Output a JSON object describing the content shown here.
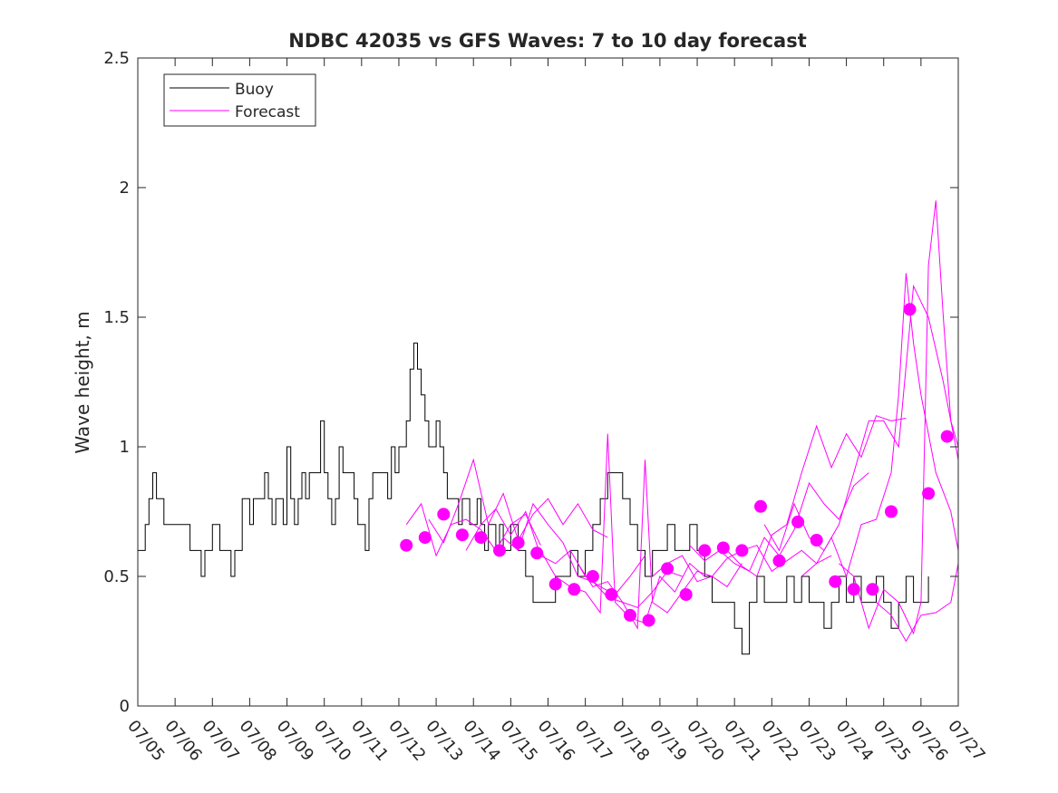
{
  "chart_data": {
    "type": "line",
    "title": "NDBC 42035 vs GFS Waves: 7 to 10 day forecast",
    "xlabel": "",
    "ylabel": "Wave height, m",
    "x_tick_labels": [
      "07/05",
      "07/06",
      "07/07",
      "07/08",
      "07/09",
      "07/10",
      "07/11",
      "07/12",
      "07/13",
      "07/14",
      "07/15",
      "07/16",
      "07/17",
      "07/18",
      "07/19",
      "07/20",
      "07/21",
      "07/22",
      "07/23",
      "07/24",
      "07/25",
      "07/26",
      "07/27"
    ],
    "y_tick_labels": [
      "0",
      "0.5",
      "1",
      "1.5",
      "2",
      "2.5"
    ],
    "xlim_days": [
      0,
      22
    ],
    "ylim": [
      0,
      2.5
    ],
    "x_unit": "days since 07/05",
    "grid": false,
    "legend_position": "top-left",
    "legend": [
      "Buoy",
      "Forecast"
    ],
    "colors": {
      "buoy": "#000000",
      "forecast": "#ff00ff"
    },
    "series": [
      {
        "name": "Buoy",
        "color": "#000000",
        "x": [
          0,
          0.2,
          0.3,
          0.4,
          0.5,
          0.6,
          0.7,
          0.8,
          1.0,
          1.2,
          1.4,
          1.6,
          1.7,
          1.8,
          1.9,
          2.0,
          2.1,
          2.2,
          2.3,
          2.4,
          2.5,
          2.6,
          2.8,
          2.9,
          3.0,
          3.1,
          3.2,
          3.4,
          3.5,
          3.6,
          3.7,
          3.8,
          3.9,
          4.0,
          4.1,
          4.2,
          4.3,
          4.4,
          4.5,
          4.6,
          4.8,
          4.9,
          5.0,
          5.1,
          5.2,
          5.3,
          5.4,
          5.5,
          5.6,
          5.7,
          5.8,
          5.9,
          6.0,
          6.1,
          6.2,
          6.3,
          6.4,
          6.5,
          6.6,
          6.7,
          6.8,
          6.9,
          7.0,
          7.1,
          7.2,
          7.3,
          7.4,
          7.5,
          7.6,
          7.7,
          7.8,
          7.9,
          8.0,
          8.1,
          8.2,
          8.3,
          8.4,
          8.5,
          8.6,
          8.7,
          8.8,
          8.9,
          9.0,
          9.1,
          9.2,
          9.3,
          9.4,
          9.5,
          9.6,
          9.7,
          9.8,
          9.9,
          10.0,
          10.2,
          10.4,
          10.6,
          10.8,
          11.0,
          11.2,
          11.4,
          11.6,
          11.8,
          12.0,
          12.2,
          12.4,
          12.6,
          12.8,
          13.0,
          13.2,
          13.4,
          13.6,
          13.8,
          14.0,
          14.2,
          14.4,
          14.6,
          14.8,
          15.0,
          15.2,
          15.4,
          15.6,
          15.8,
          16.0,
          16.2,
          16.4,
          16.6,
          16.8,
          17.0,
          17.2,
          17.4,
          17.6,
          17.8,
          18.0,
          18.2,
          18.4,
          18.6,
          18.8,
          19.0,
          19.2,
          19.4,
          19.6,
          19.8,
          20.0,
          20.2,
          20.4,
          20.6,
          20.8,
          21.0,
          21.2
        ],
        "y": [
          0.6,
          0.7,
          0.8,
          0.9,
          0.8,
          0.8,
          0.7,
          0.7,
          0.7,
          0.7,
          0.6,
          0.6,
          0.5,
          0.6,
          0.6,
          0.7,
          0.7,
          0.6,
          0.6,
          0.6,
          0.5,
          0.6,
          0.8,
          0.8,
          0.7,
          0.8,
          0.8,
          0.9,
          0.8,
          0.7,
          0.8,
          0.8,
          0.7,
          1.0,
          0.8,
          0.7,
          0.8,
          0.9,
          0.8,
          0.9,
          0.9,
          1.1,
          0.9,
          0.8,
          0.7,
          0.8,
          1.0,
          0.9,
          0.9,
          0.9,
          0.8,
          0.7,
          0.7,
          0.6,
          0.8,
          0.9,
          0.9,
          0.9,
          0.9,
          0.8,
          1.0,
          0.9,
          1.0,
          1.0,
          1.1,
          1.3,
          1.4,
          1.3,
          1.2,
          1.1,
          1.0,
          1.0,
          1.1,
          1.0,
          0.9,
          0.8,
          0.8,
          0.8,
          0.7,
          0.8,
          0.8,
          0.7,
          0.7,
          0.8,
          0.7,
          0.6,
          0.7,
          0.7,
          0.6,
          0.7,
          0.6,
          0.6,
          0.7,
          0.6,
          0.5,
          0.4,
          0.4,
          0.4,
          0.5,
          0.5,
          0.6,
          0.5,
          0.6,
          0.7,
          0.8,
          0.9,
          0.9,
          0.8,
          0.7,
          0.6,
          0.5,
          0.6,
          0.6,
          0.7,
          0.6,
          0.6,
          0.7,
          0.6,
          0.5,
          0.4,
          0.4,
          0.4,
          0.3,
          0.2,
          0.4,
          0.5,
          0.4,
          0.4,
          0.4,
          0.5,
          0.4,
          0.5,
          0.4,
          0.4,
          0.3,
          0.4,
          0.5,
          0.4,
          0.5,
          0.4,
          0.4,
          0.5,
          0.4,
          0.3,
          0.4,
          0.5,
          0.4,
          0.4,
          0.5
        ]
      },
      {
        "name": "Forecast",
        "color": "#ff00ff",
        "lines": [
          {
            "x": [
              7.2,
              7.6,
              8.0,
              8.4,
              8.8,
              9.2,
              9.6,
              10.0,
              10.4,
              10.8
            ],
            "y": [
              0.7,
              0.78,
              0.58,
              0.7,
              0.72,
              0.68,
              0.6,
              0.7,
              0.74,
              0.62
            ]
          },
          {
            "x": [
              7.8,
              8.2,
              8.6,
              9.0,
              9.4,
              9.8,
              10.2,
              10.6,
              11.0,
              11.4,
              11.8,
              12.2,
              12.6
            ],
            "y": [
              0.72,
              0.63,
              0.78,
              0.95,
              0.7,
              0.82,
              0.64,
              0.74,
              0.8,
              0.7,
              0.78,
              0.68,
              0.65
            ]
          },
          {
            "x": [
              8.8,
              9.2,
              9.6,
              10.0,
              10.4,
              10.8,
              11.2,
              11.6,
              12.0,
              12.4,
              12.8,
              13.2,
              13.6
            ],
            "y": [
              0.6,
              0.7,
              0.76,
              0.66,
              0.75,
              0.58,
              0.55,
              0.6,
              0.5,
              0.46,
              0.43,
              0.5,
              0.58
            ]
          },
          {
            "x": [
              9.8,
              10.2,
              10.6,
              11.0,
              11.4,
              11.8,
              12.2,
              12.6,
              13.0,
              13.4,
              13.8,
              14.2,
              14.6
            ],
            "y": [
              0.65,
              0.6,
              0.78,
              0.7,
              0.63,
              0.5,
              0.48,
              0.42,
              0.4,
              0.38,
              0.44,
              0.52,
              0.5
            ]
          },
          {
            "x": [
              10.8,
              11.2,
              11.6,
              12.0,
              12.4,
              12.6,
              12.8,
              13.2,
              13.6,
              14.0,
              14.4,
              14.8,
              15.2
            ],
            "y": [
              0.6,
              0.5,
              0.46,
              0.44,
              0.36,
              1.05,
              0.4,
              0.34,
              0.32,
              0.5,
              0.44,
              0.55,
              0.5
            ]
          },
          {
            "x": [
              11.8,
              12.2,
              12.6,
              13.0,
              13.4,
              13.6,
              13.8,
              14.2,
              14.6,
              15.0,
              15.4,
              15.8,
              16.2
            ],
            "y": [
              0.55,
              0.46,
              0.48,
              0.4,
              0.3,
              0.95,
              0.4,
              0.36,
              0.44,
              0.52,
              0.5,
              0.46,
              0.55
            ]
          },
          {
            "x": [
              13.8,
              14.2,
              14.6,
              15.0,
              15.4,
              15.8,
              16.2,
              16.6,
              17.0,
              17.4,
              17.8,
              18.2,
              18.6
            ],
            "y": [
              0.5,
              0.55,
              0.58,
              0.48,
              0.5,
              0.57,
              0.6,
              0.62,
              0.52,
              0.56,
              0.6,
              0.55,
              0.58
            ]
          },
          {
            "x": [
              14.8,
              15.2,
              15.6,
              16.0,
              16.4,
              16.8,
              17.2,
              17.6,
              18.0,
              18.4,
              18.8,
              19.2,
              19.6
            ],
            "y": [
              0.62,
              0.56,
              0.6,
              0.55,
              0.52,
              0.65,
              0.58,
              0.68,
              0.86,
              0.78,
              0.72,
              0.85,
              0.9
            ]
          },
          {
            "x": [
              15.8,
              16.2,
              16.6,
              17.0,
              17.4,
              17.8,
              18.2,
              18.6,
              19.0,
              19.4,
              19.8,
              20.2,
              20.6
            ],
            "y": [
              0.6,
              0.54,
              0.5,
              0.66,
              0.7,
              0.9,
              1.08,
              0.92,
              1.05,
              0.96,
              1.12,
              1.1,
              1.11
            ]
          },
          {
            "x": [
              16.8,
              17.2,
              17.6,
              18.0,
              18.4,
              18.8,
              19.2,
              19.6,
              20.0,
              20.4,
              20.8,
              21.2,
              21.6,
              22.0
            ],
            "y": [
              0.7,
              0.6,
              0.78,
              0.65,
              0.6,
              0.7,
              0.9,
              1.1,
              1.1,
              1.0,
              1.62,
              1.5,
              1.25,
              0.95
            ]
          },
          {
            "x": [
              17.8,
              18.2,
              18.6,
              19.0,
              19.4,
              19.8,
              20.2,
              20.4,
              20.6,
              20.8,
              21.0,
              21.4,
              21.8,
              22.0
            ],
            "y": [
              0.5,
              0.55,
              0.65,
              0.5,
              0.7,
              0.72,
              0.9,
              1.2,
              1.67,
              1.4,
              1.2,
              0.9,
              0.75,
              0.6
            ]
          },
          {
            "x": [
              18.8,
              19.2,
              19.6,
              20.0,
              20.4,
              20.8,
              21.0,
              21.2,
              21.4,
              21.6,
              21.8,
              22.0
            ],
            "y": [
              0.55,
              0.5,
              0.3,
              0.45,
              0.4,
              0.28,
              0.4,
              1.7,
              1.95,
              1.5,
              1.1,
              1.0
            ]
          },
          {
            "x": [
              19.8,
              20.2,
              20.6,
              21.0,
              21.4,
              21.8,
              22.0
            ],
            "y": [
              0.4,
              0.35,
              0.25,
              0.35,
              0.36,
              0.4,
              0.55
            ]
          }
        ],
        "markers": {
          "x": [
            7.2,
            7.7,
            8.2,
            8.7,
            9.2,
            9.7,
            10.2,
            10.7,
            11.2,
            11.7,
            12.2,
            12.7,
            13.2,
            13.7,
            14.2,
            14.7,
            15.2,
            15.7,
            16.2,
            16.7,
            17.2,
            17.7,
            18.2,
            18.7,
            19.2,
            19.7,
            20.2,
            20.7,
            21.2,
            21.7
          ],
          "y": [
            0.62,
            0.65,
            0.74,
            0.66,
            0.65,
            0.6,
            0.63,
            0.59,
            0.47,
            0.45,
            0.5,
            0.43,
            0.35,
            0.33,
            0.53,
            0.43,
            0.6,
            0.61,
            0.6,
            0.77,
            0.56,
            0.71,
            0.64,
            0.48,
            0.45,
            0.45,
            0.75,
            1.53,
            0.82,
            1.04
          ]
        }
      }
    ]
  }
}
